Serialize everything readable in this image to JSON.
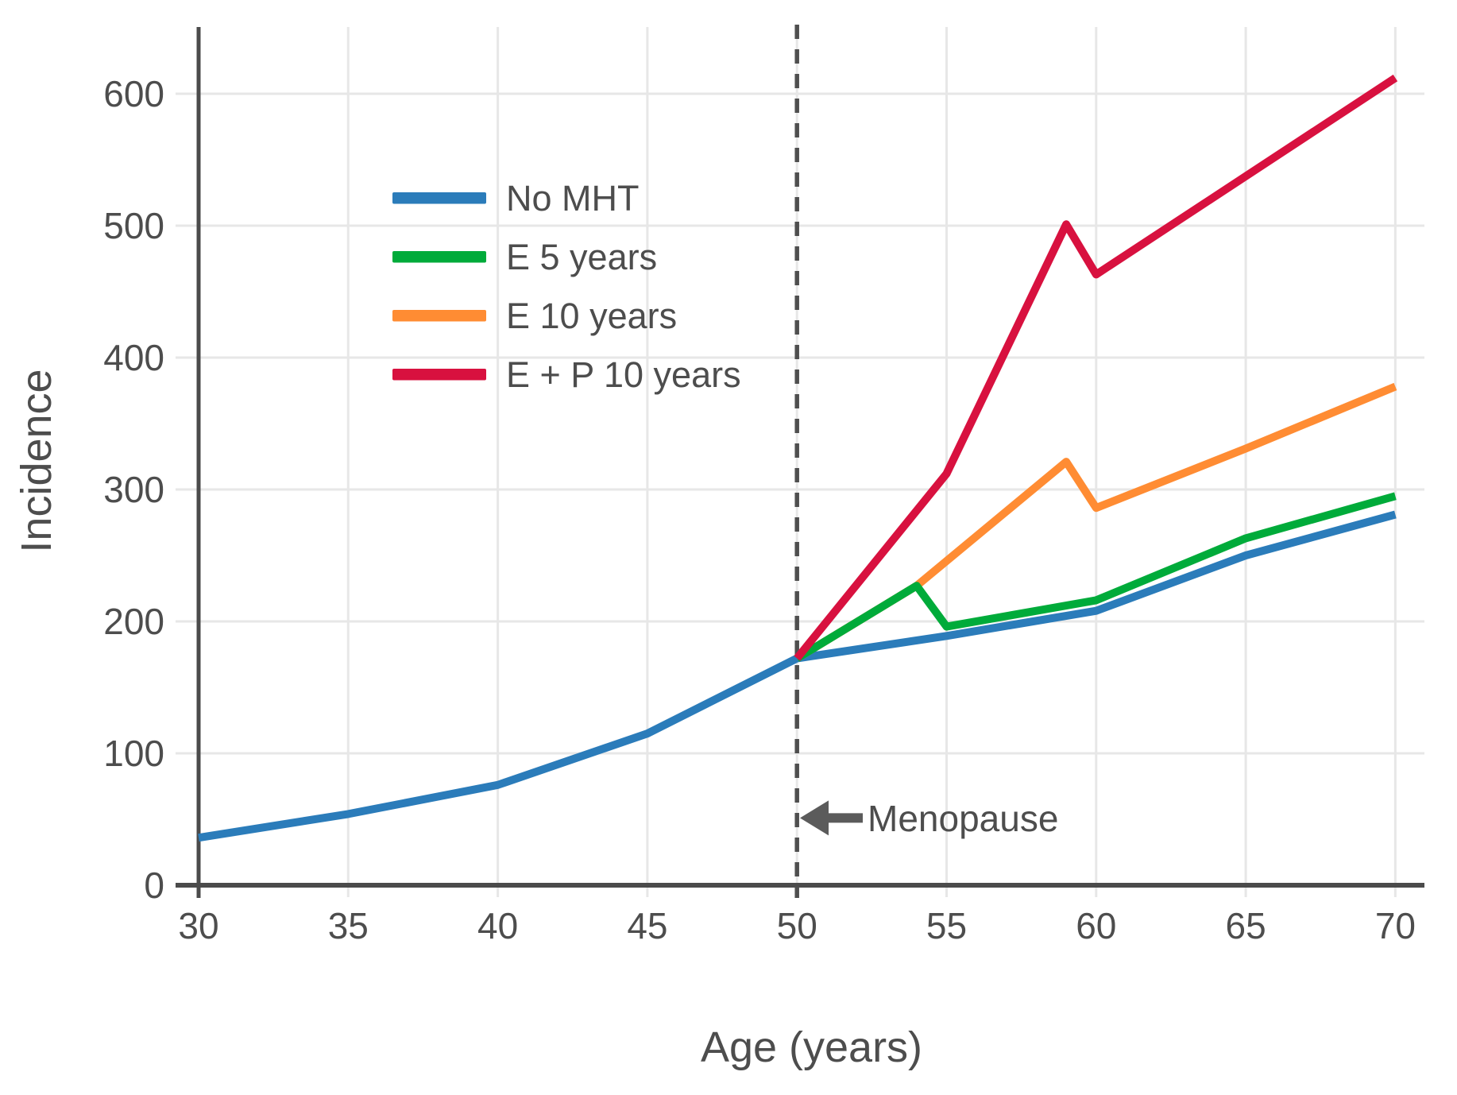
{
  "page": {
    "background": "#ffffff"
  },
  "chart_data": {
    "type": "line",
    "title": "",
    "xlabel": "Age (years)",
    "ylabel": "Incidence",
    "x_ticks": [
      30,
      35,
      40,
      45,
      50,
      55,
      60,
      65,
      70
    ],
    "y_ticks": [
      0,
      100,
      200,
      300,
      400,
      500,
      600
    ],
    "xlim": [
      30,
      71
    ],
    "ylim": [
      0,
      650
    ],
    "grid": true,
    "legend_position": "upper-left-inside",
    "series": [
      {
        "name": "No MHT",
        "color": "#2b7cba",
        "points": [
          [
            30,
            36
          ],
          [
            35,
            54
          ],
          [
            40,
            76
          ],
          [
            45,
            115
          ],
          [
            50,
            172
          ],
          [
            55,
            189
          ],
          [
            60,
            208
          ],
          [
            65,
            250
          ],
          [
            70,
            281
          ]
        ]
      },
      {
        "name": "E 5 years",
        "color": "#00ab3a",
        "points": [
          [
            50,
            172
          ],
          [
            54,
            227
          ],
          [
            55,
            196
          ],
          [
            60,
            216
          ],
          [
            65,
            263
          ],
          [
            70,
            295
          ]
        ]
      },
      {
        "name": "E 10 years",
        "color": "#ff8c33",
        "points": [
          [
            50,
            172
          ],
          [
            54,
            227
          ],
          [
            59,
            321
          ],
          [
            60,
            286
          ],
          [
            65,
            331
          ],
          [
            70,
            378
          ]
        ]
      },
      {
        "name": "E + P 10 years",
        "color": "#d8113f",
        "points": [
          [
            50,
            172
          ],
          [
            55,
            312
          ],
          [
            59,
            501
          ],
          [
            60,
            463
          ],
          [
            70,
            612
          ]
        ]
      }
    ],
    "annotation": {
      "label": "Menopause",
      "line_x": 50,
      "arrow_points_to_x": 50,
      "arrow_y_value": 51
    }
  },
  "colors": {
    "text": "#4d4d4d",
    "axis": "#4b4b4b",
    "grid": "#e7e7e7",
    "dashed_line": "#4f4f4f",
    "arrow": "#5b5b5b",
    "background": "#ffffff"
  }
}
